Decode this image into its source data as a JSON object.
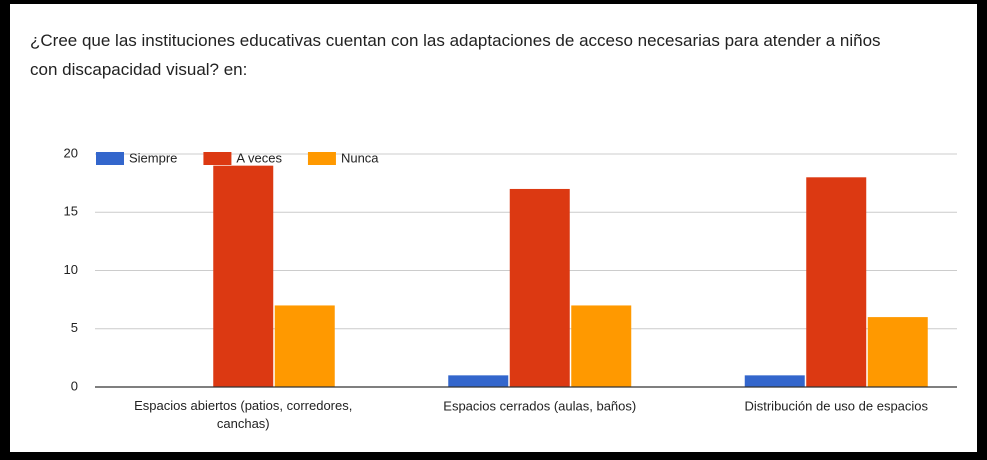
{
  "chart_data": {
    "type": "bar",
    "title": "¿Cree que las instituciones educativas cuentan con las adaptaciones de acceso necesarias para atender a niños con discapacidad visual? en:",
    "categories": [
      "Espacios abiertos (patios, corredores, canchas)",
      "Espacios cerrados (aulas, baños)",
      "Distribución de uso de espacios"
    ],
    "series": [
      {
        "name": "Siempre",
        "color": "#3366cc",
        "values": [
          0,
          1,
          1
        ]
      },
      {
        "name": "A veces",
        "color": "#dc3912",
        "values": [
          19,
          17,
          18
        ]
      },
      {
        "name": "Nunca",
        "color": "#ff9900",
        "values": [
          7,
          7,
          6
        ]
      }
    ],
    "ylim": [
      0,
      20
    ],
    "yticks": [
      0,
      5,
      10,
      15,
      20
    ],
    "grid": true,
    "legend": "top-left"
  }
}
